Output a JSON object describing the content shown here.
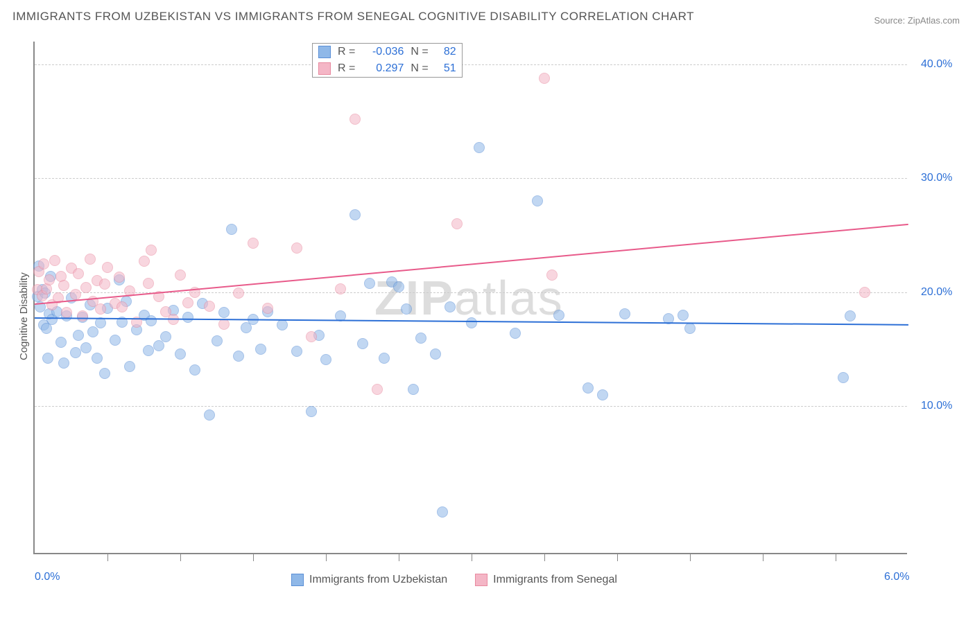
{
  "title": "IMMIGRANTS FROM UZBEKISTAN VS IMMIGRANTS FROM SENEGAL COGNITIVE DISABILITY CORRELATION CHART",
  "source": "Source: ZipAtlas.com",
  "ylabel": "Cognitive Disability",
  "watermark_prefix": "ZIP",
  "watermark_suffix": "atlas",
  "chart": {
    "type": "scatter",
    "xlim": [
      0,
      6
    ],
    "ylim": [
      -3,
      42
    ],
    "xtick_labels": [
      {
        "v": 0,
        "label": "0.0%"
      },
      {
        "v": 6,
        "label": "6.0%"
      }
    ],
    "xtick_marks": [
      0.5,
      1.0,
      1.5,
      2.0,
      2.5,
      3.0,
      3.5,
      4.0,
      4.5,
      5.0,
      5.5
    ],
    "ytick_gridlines": [
      10,
      20,
      30,
      40
    ],
    "ytick_labels": [
      {
        "v": 10,
        "label": "10.0%"
      },
      {
        "v": 20,
        "label": "20.0%"
      },
      {
        "v": 30,
        "label": "30.0%"
      },
      {
        "v": 40,
        "label": "40.0%"
      }
    ],
    "background_color": "#ffffff",
    "grid_color": "#cccccc",
    "axis_color": "#888888",
    "tick_label_color": "#2c6fd6",
    "marker_radius": 8,
    "marker_opacity": 0.55,
    "series": [
      {
        "name": "Immigrants from Uzbekistan",
        "color_fill": "#8fb8e8",
        "color_stroke": "#5a8fd6",
        "R": "-0.036",
        "N": "82",
        "trend": {
          "x1": 0,
          "y1": 17.8,
          "x2": 6,
          "y2": 17.2,
          "color": "#2c6fd6",
          "width": 2
        },
        "points": [
          [
            0.02,
            19.6
          ],
          [
            0.03,
            22.3
          ],
          [
            0.04,
            18.7
          ],
          [
            0.05,
            20.2
          ],
          [
            0.06,
            17.1
          ],
          [
            0.07,
            19.9
          ],
          [
            0.08,
            16.8
          ],
          [
            0.09,
            14.2
          ],
          [
            0.1,
            18.1
          ],
          [
            0.11,
            21.4
          ],
          [
            0.12,
            17.6
          ],
          [
            0.15,
            18.3
          ],
          [
            0.18,
            15.6
          ],
          [
            0.2,
            13.8
          ],
          [
            0.22,
            17.9
          ],
          [
            0.25,
            19.5
          ],
          [
            0.28,
            14.7
          ],
          [
            0.3,
            16.2
          ],
          [
            0.33,
            17.8
          ],
          [
            0.35,
            15.1
          ],
          [
            0.38,
            18.9
          ],
          [
            0.4,
            16.5
          ],
          [
            0.43,
            14.2
          ],
          [
            0.45,
            17.3
          ],
          [
            0.48,
            12.9
          ],
          [
            0.5,
            18.6
          ],
          [
            0.55,
            15.8
          ],
          [
            0.58,
            21.1
          ],
          [
            0.6,
            17.4
          ],
          [
            0.63,
            19.2
          ],
          [
            0.65,
            13.5
          ],
          [
            0.7,
            16.7
          ],
          [
            0.75,
            18.0
          ],
          [
            0.78,
            14.9
          ],
          [
            0.8,
            17.5
          ],
          [
            0.85,
            15.3
          ],
          [
            0.9,
            16.1
          ],
          [
            0.95,
            18.4
          ],
          [
            1.0,
            14.6
          ],
          [
            1.05,
            17.8
          ],
          [
            1.1,
            13.2
          ],
          [
            1.15,
            19.0
          ],
          [
            1.2,
            9.2
          ],
          [
            1.25,
            15.7
          ],
          [
            1.3,
            18.2
          ],
          [
            1.35,
            25.5
          ],
          [
            1.4,
            14.4
          ],
          [
            1.45,
            16.9
          ],
          [
            1.5,
            17.6
          ],
          [
            1.55,
            15.0
          ],
          [
            1.6,
            18.3
          ],
          [
            1.7,
            17.1
          ],
          [
            1.8,
            14.8
          ],
          [
            1.9,
            9.5
          ],
          [
            1.95,
            16.2
          ],
          [
            2.0,
            14.1
          ],
          [
            2.1,
            17.9
          ],
          [
            2.2,
            26.8
          ],
          [
            2.25,
            15.5
          ],
          [
            2.3,
            20.8
          ],
          [
            2.4,
            14.2
          ],
          [
            2.45,
            20.9
          ],
          [
            2.5,
            20.5
          ],
          [
            2.55,
            18.5
          ],
          [
            2.6,
            11.5
          ],
          [
            2.65,
            16.0
          ],
          [
            2.75,
            14.6
          ],
          [
            2.8,
            0.7
          ],
          [
            2.85,
            18.7
          ],
          [
            3.0,
            17.3
          ],
          [
            3.05,
            32.7
          ],
          [
            3.3,
            16.4
          ],
          [
            3.45,
            28.0
          ],
          [
            3.6,
            18.0
          ],
          [
            3.8,
            11.6
          ],
          [
            3.9,
            11.0
          ],
          [
            4.05,
            18.1
          ],
          [
            4.35,
            17.7
          ],
          [
            4.45,
            18.0
          ],
          [
            4.5,
            16.8
          ],
          [
            5.55,
            12.5
          ],
          [
            5.6,
            17.9
          ]
        ]
      },
      {
        "name": "Immigrants from Senegal",
        "color_fill": "#f4b6c6",
        "color_stroke": "#e8899f",
        "R": " 0.297",
        "N": "51",
        "trend": {
          "x1": 0,
          "y1": 19.0,
          "x2": 6,
          "y2": 26.0,
          "color": "#e85a8a",
          "width": 2
        },
        "points": [
          [
            0.02,
            20.2
          ],
          [
            0.03,
            21.8
          ],
          [
            0.05,
            19.7
          ],
          [
            0.06,
            22.5
          ],
          [
            0.08,
            20.3
          ],
          [
            0.1,
            21.1
          ],
          [
            0.12,
            18.9
          ],
          [
            0.14,
            22.8
          ],
          [
            0.16,
            19.5
          ],
          [
            0.18,
            21.4
          ],
          [
            0.2,
            20.6
          ],
          [
            0.22,
            18.2
          ],
          [
            0.25,
            22.1
          ],
          [
            0.28,
            19.8
          ],
          [
            0.3,
            21.6
          ],
          [
            0.33,
            17.9
          ],
          [
            0.35,
            20.4
          ],
          [
            0.38,
            22.9
          ],
          [
            0.4,
            19.2
          ],
          [
            0.43,
            21.0
          ],
          [
            0.45,
            18.5
          ],
          [
            0.48,
            20.7
          ],
          [
            0.5,
            22.2
          ],
          [
            0.55,
            19.0
          ],
          [
            0.58,
            21.3
          ],
          [
            0.6,
            18.7
          ],
          [
            0.65,
            20.1
          ],
          [
            0.7,
            17.4
          ],
          [
            0.75,
            22.7
          ],
          [
            0.78,
            20.8
          ],
          [
            0.8,
            23.7
          ],
          [
            0.85,
            19.6
          ],
          [
            0.9,
            18.3
          ],
          [
            0.95,
            17.6
          ],
          [
            1.0,
            21.5
          ],
          [
            1.05,
            19.1
          ],
          [
            1.1,
            20.0
          ],
          [
            1.2,
            18.8
          ],
          [
            1.3,
            17.2
          ],
          [
            1.4,
            19.9
          ],
          [
            1.5,
            24.3
          ],
          [
            1.6,
            18.6
          ],
          [
            1.8,
            23.9
          ],
          [
            1.9,
            16.1
          ],
          [
            2.1,
            20.3
          ],
          [
            2.2,
            35.2
          ],
          [
            2.35,
            11.5
          ],
          [
            2.9,
            26.0
          ],
          [
            3.5,
            38.8
          ],
          [
            3.55,
            21.5
          ],
          [
            5.7,
            20.0
          ]
        ]
      }
    ]
  },
  "legend": [
    {
      "label": "Immigrants from Uzbekistan",
      "fill": "#8fb8e8",
      "stroke": "#5a8fd6"
    },
    {
      "label": "Immigrants from Senegal",
      "fill": "#f4b6c6",
      "stroke": "#e8899f"
    }
  ]
}
